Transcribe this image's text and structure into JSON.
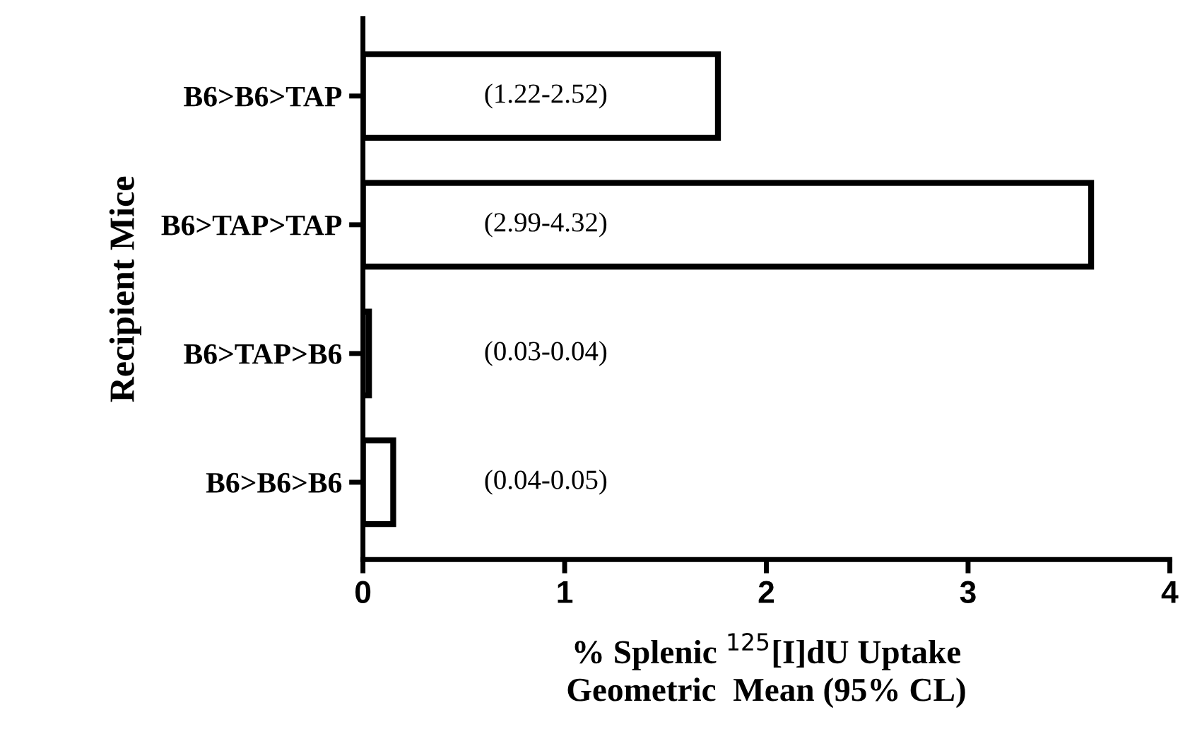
{
  "chart_data": {
    "type": "bar",
    "orientation": "horizontal",
    "categories": [
      "B6>B6>TAP",
      "B6>TAP>TAP",
      "B6>TAP>B6",
      "B6>B6>B6"
    ],
    "values": [
      1.76,
      3.61,
      0.03,
      0.15
    ],
    "value_labels": [
      "(1.22-2.52)",
      "(2.99-4.32)",
      "(0.03-0.04)",
      "(0.04-0.05)"
    ],
    "color": "#ffffff",
    "xlim": [
      0,
      4
    ],
    "xticks": [
      0,
      1,
      2,
      3,
      4
    ],
    "xlabel": "% Splenic $^{125}$[I]dU Uptake\nGeometric  Mean (95% CL)",
    "ylabel": "Recipient Mice",
    "grid": false,
    "legend": false
  }
}
